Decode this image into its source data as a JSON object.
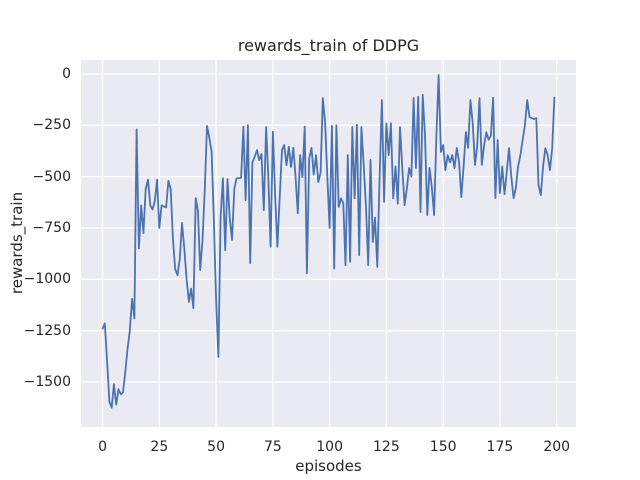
{
  "figure": {
    "title": "rewards_train of DDPG",
    "background_color": "#ffffff",
    "axes_background_color": "#eaeaf2",
    "grid_color": "#ffffff",
    "text_color": "#262626"
  },
  "chart_data": {
    "type": "line",
    "title": "rewards_train of DDPG",
    "xlabel": "episodes",
    "ylabel": "rewards_train",
    "grid": true,
    "legend": false,
    "x_ticks": [
      0,
      25,
      50,
      75,
      100,
      125,
      150,
      175,
      200
    ],
    "y_ticks": [
      0,
      -250,
      -500,
      -750,
      -1000,
      -1250,
      -1500
    ],
    "xlim": [
      -9.5,
      208.5
    ],
    "ylim": [
      -1719,
      68
    ],
    "series": [
      {
        "name": "rewards_train",
        "color": "#4c72b0",
        "line_width": 1.8,
        "x_start": 0,
        "x_step": 1,
        "values": [
          -1240,
          -1215,
          -1400,
          -1595,
          -1625,
          -1510,
          -1610,
          -1535,
          -1560,
          -1550,
          -1450,
          -1340,
          -1250,
          -1095,
          -1190,
          -270,
          -850,
          -640,
          -775,
          -560,
          -515,
          -640,
          -660,
          -620,
          -515,
          -750,
          -640,
          -645,
          -650,
          -520,
          -560,
          -810,
          -950,
          -980,
          -900,
          -725,
          -850,
          -1000,
          -1110,
          -1045,
          -1140,
          -605,
          -665,
          -955,
          -808,
          -560,
          -253,
          -310,
          -378,
          -700,
          -1100,
          -1377,
          -700,
          -508,
          -858,
          -512,
          -700,
          -808,
          -560,
          -508,
          -507,
          -505,
          -257,
          -614,
          -250,
          -921,
          -430,
          -404,
          -370,
          -420,
          -390,
          -663,
          -258,
          -500,
          -841,
          -281,
          -590,
          -841,
          -600,
          -370,
          -346,
          -444,
          -354,
          -453,
          -360,
          -502,
          -678,
          -395,
          -502,
          -257,
          -970,
          -410,
          -360,
          -490,
          -395,
          -526,
          -480,
          -118,
          -237,
          -508,
          -750,
          -253,
          -947,
          -250,
          -648,
          -606,
          -630,
          -931,
          -395,
          -914,
          -258,
          -606,
          -248,
          -882,
          -258,
          -443,
          -650,
          -931,
          -419,
          -818,
          -700,
          -940,
          -500,
          -127,
          -623,
          -240,
          -395,
          -240,
          -606,
          -450,
          -631,
          -258,
          -458,
          -639,
          -560,
          -458,
          -500,
          -117,
          -458,
          -111,
          -672,
          -102,
          -300,
          -687,
          -458,
          -550,
          -687,
          -300,
          -5,
          -380,
          -346,
          -468,
          -395,
          -430,
          -395,
          -458,
          -360,
          -430,
          -599,
          -450,
          -283,
          -360,
          -127,
          -239,
          -443,
          -350,
          -118,
          -443,
          -350,
          -283,
          -320,
          -300,
          -116,
          -604,
          -322,
          -580,
          -450,
          -585,
          -480,
          -361,
          -500,
          -604,
          -557,
          -450,
          -395,
          -322,
          -250,
          -127,
          -210,
          -215,
          -220,
          -215,
          -541,
          -590,
          -450,
          -362,
          -395,
          -468,
          -362,
          -115
        ]
      }
    ]
  }
}
